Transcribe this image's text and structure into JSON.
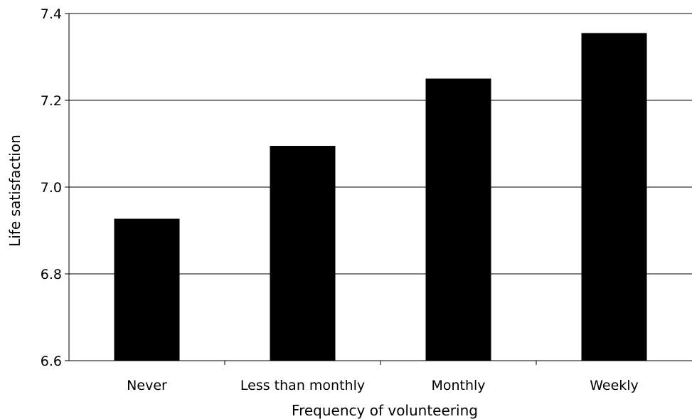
{
  "chart_data": {
    "type": "bar",
    "title": "",
    "xlabel": "Frequency of volunteering",
    "ylabel": "Life satisfaction",
    "categories": [
      "Never",
      "Less than monthly",
      "Monthly",
      "Weekly"
    ],
    "values": [
      6.927,
      7.095,
      7.25,
      7.355
    ],
    "ylim": [
      6.6,
      7.4
    ],
    "yticks": [
      "6.6",
      "6.8",
      "7.0",
      "7.2",
      "7.4"
    ],
    "grid": "horizontal",
    "legend": "none",
    "bar_color": "#000000",
    "grid_color": "#000000"
  }
}
